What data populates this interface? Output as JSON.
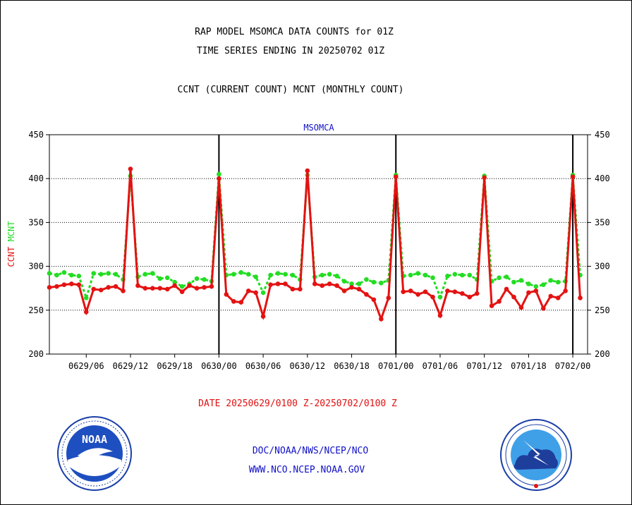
{
  "header": {
    "title1": "RAP MODEL MSOMCA DATA COUNTS for 01Z",
    "title2": "TIME SERIES ENDING IN 20250702 01Z",
    "subtitle": "CCNT (CURRENT COUNT) MCNT (MONTHLY COUNT)",
    "station": "MSOMCA"
  },
  "footer": {
    "date_range": "DATE 20250629/0100 Z-20250702/0100 Z",
    "link1": "DOC/NOAA/NWS/NCEP/NCO",
    "link2": "WWW.NCO.NCEP.NOAA.GOV"
  },
  "logos": {
    "left_text": "NOAA"
  },
  "colors": {
    "ccnt": "#e41212",
    "mcnt": "#22dd22",
    "text_blue": "#1010c8",
    "axis": "#000000"
  },
  "chart_data": {
    "type": "line",
    "title": "MSOMCA",
    "ylabel_parts": [
      "CCNT",
      "MCNT"
    ],
    "ylim": [
      200,
      450
    ],
    "yticks": [
      200,
      250,
      300,
      350,
      400,
      450
    ],
    "x_tick_labels": [
      "0629/06",
      "0629/12",
      "0629/18",
      "0630/00",
      "0630/06",
      "0630/12",
      "0630/18",
      "0701/00",
      "0701/06",
      "0701/12",
      "0701/18",
      "0702/00"
    ],
    "x_tick_hours": [
      5,
      11,
      17,
      23,
      29,
      35,
      41,
      47,
      53,
      59,
      65,
      71
    ],
    "day_lines_hours": [
      23,
      47,
      71
    ],
    "x_start_hour": 0,
    "x_end_hour": 73,
    "grid_y": [
      250,
      300,
      350,
      400
    ],
    "series": [
      {
        "name": "CCNT",
        "color": "#e41212",
        "x": [
          0,
          1,
          2,
          3,
          4,
          5,
          6,
          7,
          8,
          9,
          10,
          11,
          12,
          13,
          14,
          15,
          16,
          17,
          18,
          19,
          20,
          21,
          22,
          23,
          24,
          25,
          26,
          27,
          28,
          29,
          30,
          31,
          32,
          33,
          34,
          35,
          36,
          37,
          38,
          39,
          40,
          41,
          42,
          43,
          44,
          45,
          46,
          47,
          48,
          49,
          50,
          51,
          52,
          53,
          54,
          55,
          56,
          57,
          58,
          59,
          60,
          61,
          62,
          63,
          64,
          65,
          66,
          67,
          68,
          69,
          70,
          71,
          72
        ],
        "values": [
          276,
          277,
          279,
          280,
          279,
          248,
          274,
          273,
          276,
          277,
          272,
          411,
          278,
          275,
          275,
          275,
          274,
          278,
          271,
          278,
          275,
          276,
          277,
          400,
          268,
          260,
          259,
          272,
          270,
          243,
          279,
          280,
          280,
          274,
          274,
          409,
          280,
          278,
          280,
          278,
          272,
          276,
          274,
          268,
          262,
          240,
          264,
          402,
          271,
          272,
          268,
          271,
          265,
          244,
          272,
          271,
          269,
          265,
          269,
          401,
          255,
          260,
          274,
          265,
          253,
          270,
          272,
          252,
          266,
          264,
          272,
          402,
          264
        ]
      },
      {
        "name": "MCNT",
        "color": "#22dd22",
        "x": [
          0,
          1,
          2,
          3,
          4,
          5,
          6,
          7,
          8,
          9,
          10,
          11,
          12,
          13,
          14,
          15,
          16,
          17,
          18,
          19,
          20,
          21,
          22,
          23,
          24,
          25,
          26,
          27,
          28,
          29,
          30,
          31,
          32,
          33,
          34,
          35,
          36,
          37,
          38,
          39,
          40,
          41,
          42,
          43,
          44,
          45,
          46,
          47,
          48,
          49,
          50,
          51,
          52,
          53,
          54,
          55,
          56,
          57,
          58,
          59,
          60,
          61,
          62,
          63,
          64,
          65,
          66,
          67,
          68,
          69,
          70,
          71,
          72
        ],
        "values": [
          292,
          290,
          293,
          290,
          289,
          264,
          292,
          291,
          292,
          291,
          285,
          403,
          288,
          291,
          292,
          286,
          287,
          282,
          277,
          280,
          286,
          285,
          283,
          405,
          290,
          291,
          293,
          291,
          288,
          270,
          290,
          292,
          291,
          290,
          285,
          404,
          288,
          290,
          291,
          289,
          283,
          280,
          280,
          285,
          282,
          281,
          284,
          404,
          289,
          290,
          292,
          290,
          287,
          265,
          289,
          291,
          290,
          290,
          285,
          403,
          283,
          287,
          288,
          282,
          284,
          280,
          277,
          279,
          284,
          282,
          283,
          404,
          290
        ]
      }
    ]
  }
}
